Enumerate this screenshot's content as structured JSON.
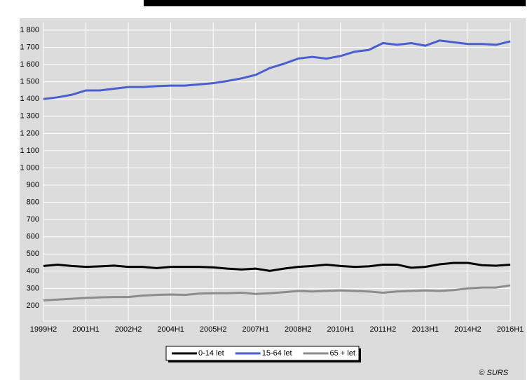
{
  "chart_data": {
    "type": "line",
    "categories": [
      "1999H2",
      null,
      null,
      "2001H1",
      null,
      null,
      "2002H2",
      null,
      null,
      "2004H1",
      null,
      null,
      "2005H2",
      null,
      null,
      "2007H1",
      null,
      null,
      "2008H2",
      null,
      null,
      "2010H1",
      null,
      null,
      "2011H2",
      null,
      null,
      "2013H1",
      null,
      null,
      "2014H2",
      null,
      null,
      "2016H1"
    ],
    "series": [
      {
        "name": "0-14 let",
        "color": "#000000",
        "values": [
          430,
          438,
          430,
          425,
          428,
          432,
          425,
          425,
          418,
          425,
          425,
          425,
          422,
          415,
          410,
          415,
          402,
          415,
          425,
          430,
          438,
          430,
          425,
          428,
          438,
          438,
          420,
          425,
          440,
          448,
          448,
          435,
          432,
          438
        ]
      },
      {
        "name": "15-64 let",
        "color": "#4a5fcf",
        "values": [
          1400,
          1410,
          1425,
          1450,
          1450,
          1460,
          1470,
          1470,
          1475,
          1478,
          1478,
          1485,
          1492,
          1505,
          1520,
          1540,
          1580,
          1605,
          1635,
          1645,
          1635,
          1650,
          1675,
          1685,
          1725,
          1715,
          1725,
          1710,
          1740,
          1730,
          1720,
          1720,
          1715,
          1735
        ]
      },
      {
        "name": "65 + let",
        "color": "#8c8c8c",
        "values": [
          230,
          235,
          240,
          245,
          248,
          250,
          250,
          258,
          262,
          265,
          262,
          270,
          272,
          272,
          275,
          268,
          272,
          278,
          285,
          282,
          285,
          288,
          285,
          282,
          275,
          282,
          285,
          288,
          285,
          290,
          300,
          305,
          305,
          318
        ]
      }
    ],
    "ylim": [
      110,
      1845
    ],
    "yticks": [
      200,
      300,
      400,
      500,
      600,
      700,
      800,
      900,
      {
        "value": 1000,
        "label": "1 000"
      },
      {
        "value": 1100,
        "label": "1 100"
      },
      {
        "value": 1200,
        "label": "1 200"
      },
      {
        "value": 1300,
        "label": "1 300"
      },
      {
        "value": 1400,
        "label": "1 400"
      },
      {
        "value": 1500,
        "label": "1 500"
      },
      {
        "value": 1600,
        "label": "1 600"
      },
      {
        "value": 1700,
        "label": "1 700"
      },
      {
        "value": 1800,
        "label": "1 800"
      }
    ],
    "grid": true,
    "source": "© SURS"
  }
}
